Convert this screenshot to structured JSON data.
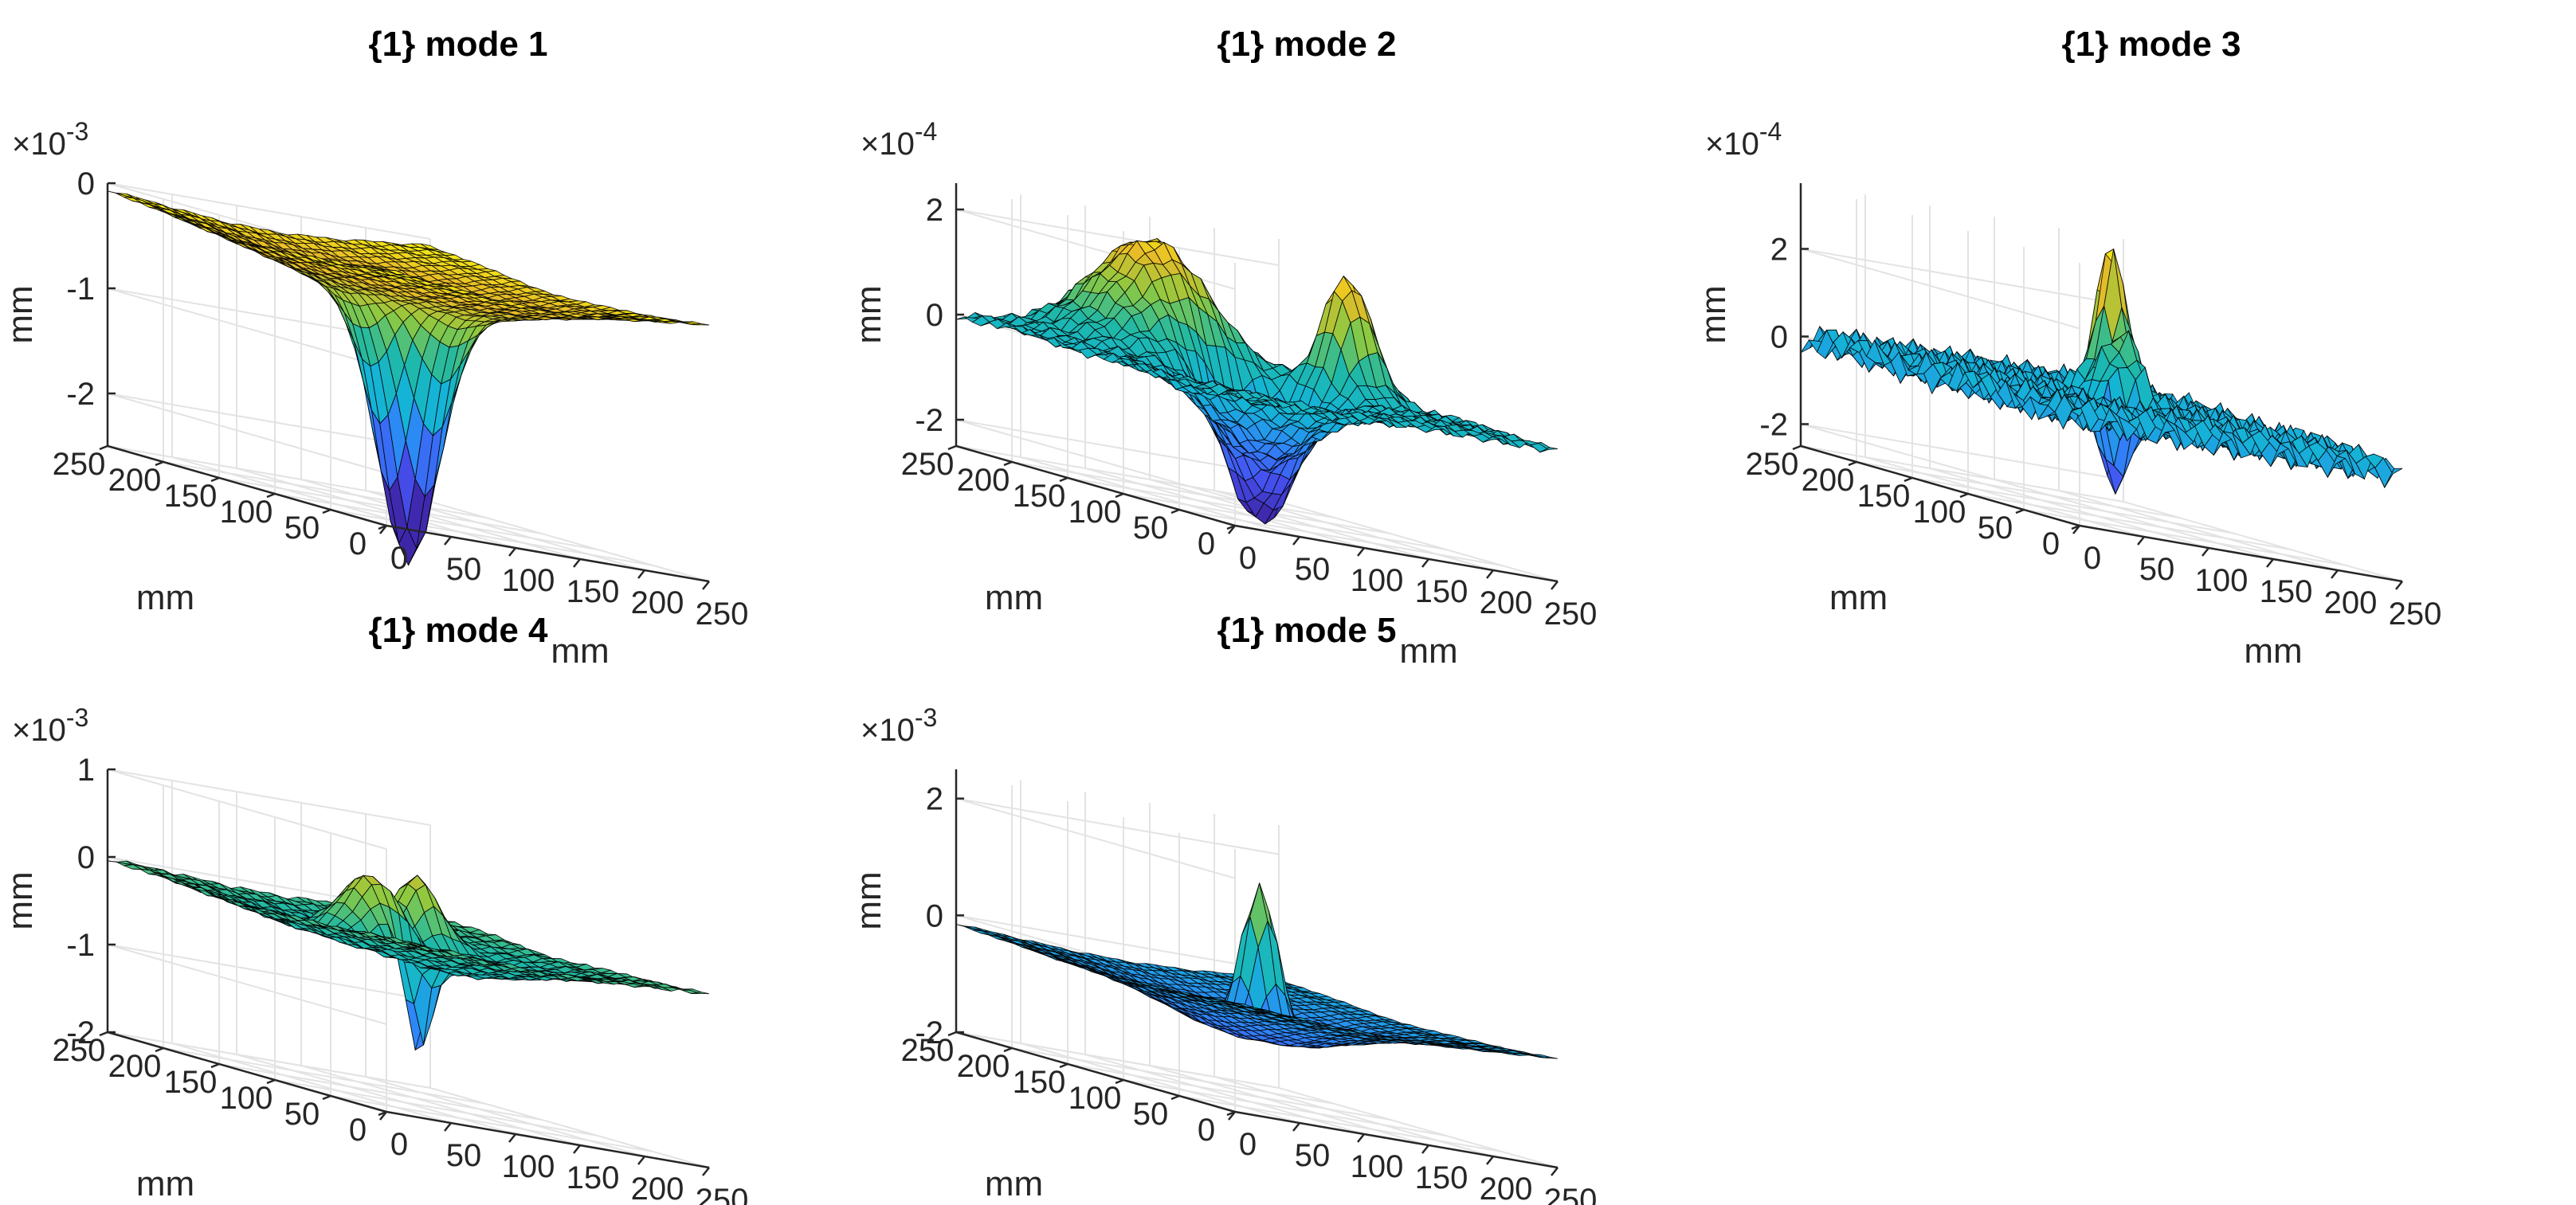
{
  "figure": {
    "background": "#ffffff",
    "colormap": "parula",
    "colors": {
      "low": "#3e26a8",
      "mid_low": "#2e87f7",
      "mid": "#1fb8a6",
      "mid_high": "#8cc941",
      "high": "#fde725"
    }
  },
  "chart_data": [
    {
      "type": "surface",
      "title": "{1} mode 1",
      "xlabel": "mm",
      "ylabel": "mm",
      "zlabel": "mm",
      "exponent_label": "×10",
      "exponent": "-3",
      "zscale": 0.001,
      "xlim": [
        0,
        250
      ],
      "ylim": [
        0,
        250
      ],
      "zlim": [
        -2.5,
        0
      ],
      "xticks": [
        0,
        50,
        100,
        150,
        200,
        250
      ],
      "yticks": [
        0,
        50,
        100,
        150,
        200,
        250
      ],
      "zticks": [
        0,
        -1,
        -2
      ],
      "peaks": [
        {
          "x": 125,
          "y": 125,
          "amp": -2.45,
          "sigma": 18
        },
        {
          "x": 125,
          "y": 125,
          "amp": -0.55,
          "sigma": 85
        }
      ],
      "noise": 0.015
    },
    {
      "type": "surface",
      "title": "{1} mode 2",
      "xlabel": "mm",
      "ylabel": "mm",
      "zlabel": "mm",
      "exponent_label": "×10",
      "exponent": "-4",
      "zscale": 0.0001,
      "xlim": [
        0,
        250
      ],
      "ylim": [
        0,
        250
      ],
      "zlim": [
        -2.5,
        2.5
      ],
      "xticks": [
        0,
        50,
        100,
        150,
        200,
        250
      ],
      "yticks": [
        0,
        50,
        100,
        150,
        200,
        250
      ],
      "zticks": [
        2,
        0,
        -2
      ],
      "peaks": [
        {
          "x": 110,
          "y": 200,
          "amp": 2.2,
          "sigma": 35
        },
        {
          "x": 200,
          "y": 130,
          "amp": 2.3,
          "sigma": 15
        },
        {
          "x": 125,
          "y": 125,
          "amp": -2.6,
          "sigma": 22
        },
        {
          "x": 90,
          "y": 80,
          "amp": -1.2,
          "sigma": 30
        }
      ],
      "noise": 0.12
    },
    {
      "type": "surface",
      "title": "{1} mode 3",
      "xlabel": "mm",
      "ylabel": "mm",
      "zlabel": "mm",
      "exponent_label": "×10",
      "exponent": "-4",
      "zscale": 0.0001,
      "xlim": [
        0,
        250
      ],
      "ylim": [
        0,
        250
      ],
      "zlim": [
        -2.5,
        3.5
      ],
      "xticks": [
        0,
        50,
        100,
        150,
        200,
        250
      ],
      "yticks": [
        0,
        50,
        100,
        150,
        200,
        250
      ],
      "zticks": [
        2,
        0,
        -2
      ],
      "peaks": [
        {
          "x": 150,
          "y": 145,
          "amp": 3.6,
          "sigma": 10
        },
        {
          "x": 135,
          "y": 118,
          "amp": 1.6,
          "sigma": 12
        },
        {
          "x": 112,
          "y": 95,
          "amp": -2.2,
          "sigma": 8
        }
      ],
      "noise": 0.45
    },
    {
      "type": "surface",
      "title": "{1} mode 4",
      "xlabel": "mm",
      "ylabel": "mm",
      "zlabel": "mm",
      "exponent_label": "×10",
      "exponent": "-3",
      "zscale": 0.001,
      "xlim": [
        0,
        250
      ],
      "ylim": [
        0,
        250
      ],
      "zlim": [
        -2,
        1
      ],
      "xticks": [
        0,
        50,
        100,
        150,
        200,
        250
      ],
      "yticks": [
        0,
        50,
        100,
        150,
        200,
        250
      ],
      "zticks": [
        1,
        0,
        -1,
        -2
      ],
      "peaks": [
        {
          "x": 110,
          "y": 140,
          "amp": 0.95,
          "sigma": 20
        },
        {
          "x": 175,
          "y": 175,
          "amp": 0.8,
          "sigma": 14
        },
        {
          "x": 125,
          "y": 125,
          "amp": -0.5,
          "sigma": 70
        },
        {
          "x": 118,
          "y": 108,
          "amp": -1.3,
          "sigma": 7
        }
      ],
      "noise": 0.03
    },
    {
      "type": "surface",
      "title": "{1} mode 5",
      "xlabel": "mm",
      "ylabel": "mm",
      "zlabel": "mm",
      "exponent_label": "×10",
      "exponent": "-3",
      "zscale": 0.001,
      "xlim": [
        0,
        250
      ],
      "ylim": [
        0,
        250
      ],
      "zlim": [
        -2,
        2.5
      ],
      "xticks": [
        0,
        50,
        100,
        150,
        200,
        250
      ],
      "yticks": [
        0,
        50,
        100,
        150,
        200,
        250
      ],
      "zticks": [
        2,
        0,
        -2
      ],
      "peaks": [
        {
          "x": 140,
          "y": 140,
          "amp": 2.7,
          "sigma": 11
        },
        {
          "x": 130,
          "y": 130,
          "amp": -0.55,
          "sigma": 45
        },
        {
          "x": 125,
          "y": 125,
          "amp": -0.5,
          "sigma": 110
        }
      ],
      "noise": 0.02
    }
  ]
}
